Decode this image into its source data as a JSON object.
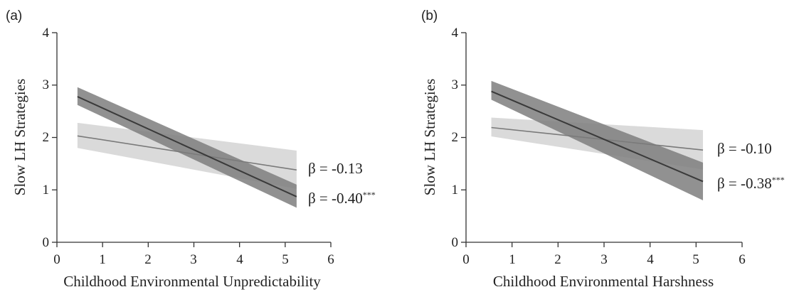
{
  "chart_data": [
    {
      "type": "line",
      "panel_label": "(a)",
      "xlabel": "Childhood Environmental Unpredictability",
      "ylabel": "Slow LH Strategies",
      "xlim": [
        0,
        6
      ],
      "ylim": [
        0,
        4
      ],
      "xticks": [
        "0",
        "1",
        "2",
        "3",
        "4",
        "5",
        "6"
      ],
      "yticks": [
        "0",
        "1",
        "2",
        "3",
        "4"
      ],
      "grid": false,
      "series": [
        {
          "label": "β = -0.13",
          "x": [
            0.45,
            5.25
          ],
          "y": [
            2.03,
            1.38
          ],
          "ci_lower": [
            1.8,
            1.02
          ],
          "ci_upper": [
            2.28,
            1.75
          ],
          "line_color": "#7a7a7a",
          "band_color": "#d6d6d6"
        },
        {
          "label": "β = -0.40",
          "label_sup": "***",
          "x": [
            0.45,
            5.25
          ],
          "y": [
            2.78,
            0.87
          ],
          "ci_lower": [
            2.62,
            0.66
          ],
          "ci_upper": [
            2.96,
            1.1
          ],
          "line_color": "#3a3a3a",
          "band_color": "#7e7e7e"
        }
      ]
    },
    {
      "type": "line",
      "panel_label": "(b)",
      "xlabel": "Childhood Environmental Harshness",
      "ylabel": "Slow LH Strategies",
      "xlim": [
        0,
        6
      ],
      "ylim": [
        0,
        4
      ],
      "xticks": [
        "0",
        "1",
        "2",
        "3",
        "4",
        "5",
        "6"
      ],
      "yticks": [
        "0",
        "1",
        "2",
        "3",
        "4"
      ],
      "grid": false,
      "series": [
        {
          "label": "β = -0.10",
          "x": [
            0.55,
            5.15
          ],
          "y": [
            2.19,
            1.76
          ],
          "ci_lower": [
            2.02,
            1.39
          ],
          "ci_upper": [
            2.38,
            2.14
          ],
          "line_color": "#7a7a7a",
          "band_color": "#d6d6d6"
        },
        {
          "label": "β = -0.38",
          "label_sup": "***",
          "x": [
            0.55,
            5.15
          ],
          "y": [
            2.88,
            1.16
          ],
          "ci_lower": [
            2.72,
            0.8
          ],
          "ci_upper": [
            3.08,
            1.52
          ],
          "line_color": "#3a3a3a",
          "band_color": "#7e7e7e"
        }
      ]
    }
  ]
}
